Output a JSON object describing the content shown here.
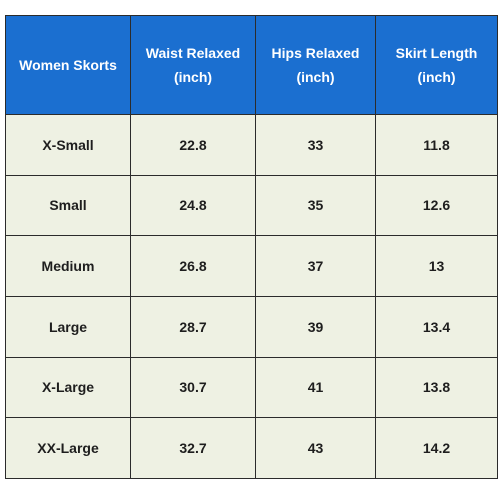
{
  "table": {
    "header": [
      "Women Skorts",
      "Waist Relaxed (inch)",
      "Hips Relaxed (inch)",
      "Skirt Length (inch)"
    ],
    "rows": [
      [
        "X-Small",
        "22.8",
        "33",
        "11.8"
      ],
      [
        "Small",
        "24.8",
        "35",
        "12.6"
      ],
      [
        "Medium",
        "26.8",
        "37",
        "13"
      ],
      [
        "Large",
        "28.7",
        "39",
        "13.4"
      ],
      [
        "X-Large",
        "30.7",
        "41",
        "13.8"
      ],
      [
        "XX-Large",
        "32.7",
        "43",
        "14.2"
      ]
    ]
  }
}
